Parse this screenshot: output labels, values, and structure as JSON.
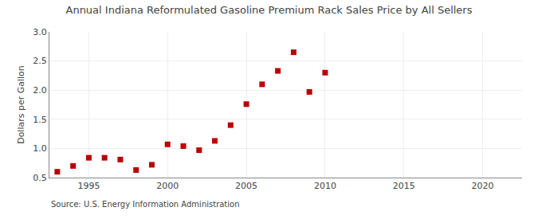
{
  "chart_data": {
    "type": "scatter",
    "title": "Annual Indiana Reformulated Gasoline Premium Rack Sales Price by All Sellers",
    "ylabel": "Dollars per Gallon",
    "annotations": [
      "Source: U.S. Energy Information Administration"
    ],
    "x": [
      1993,
      1994,
      1995,
      1996,
      1997,
      1998,
      1999,
      2000,
      2001,
      2002,
      2003,
      2004,
      2005,
      2006,
      2007,
      2008,
      2009,
      2010
    ],
    "values": [
      0.6,
      0.7,
      0.84,
      0.84,
      0.81,
      0.63,
      0.72,
      1.07,
      1.04,
      0.97,
      1.13,
      1.4,
      1.76,
      2.1,
      2.33,
      2.65,
      1.97,
      2.3
    ],
    "color": "#bb0000",
    "marker": "square",
    "xlim": [
      1992.5,
      2022.5
    ],
    "xticks": [
      1995,
      2000,
      2005,
      2010,
      2015,
      2020
    ],
    "ylim": [
      0.5,
      3.0
    ],
    "yticks": [
      0.5,
      {
        "value": 1.0,
        "label": "1.0"
      },
      1.5,
      {
        "value": 2.0,
        "label": "2.0"
      },
      2.5,
      {
        "value": 3.0,
        "label": "3.0"
      }
    ],
    "grid": true
  }
}
